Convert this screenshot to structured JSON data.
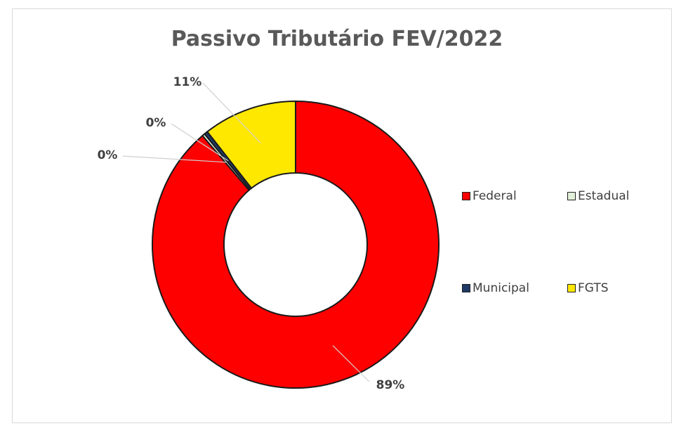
{
  "chart_data": {
    "type": "donut",
    "title": "Passivo Tributário FEV/2022",
    "slices": [
      {
        "name": "Federal",
        "value": 89,
        "label": "89%",
        "color": "#ff0000"
      },
      {
        "name": "Estadual",
        "value": 0.3,
        "label": "0%",
        "color": "#e2efda"
      },
      {
        "name": "Municipal",
        "value": 0.4,
        "label": "0%",
        "color": "#1f3864"
      },
      {
        "name": "FGTS",
        "value": 10.6,
        "label": "11%",
        "color": "#ffe800"
      }
    ],
    "legend": {
      "position": "right",
      "entries": [
        "Federal",
        "Estadual",
        "Municipal",
        "FGTS"
      ]
    },
    "start_angle_deg": 0,
    "direction": "clockwise"
  }
}
